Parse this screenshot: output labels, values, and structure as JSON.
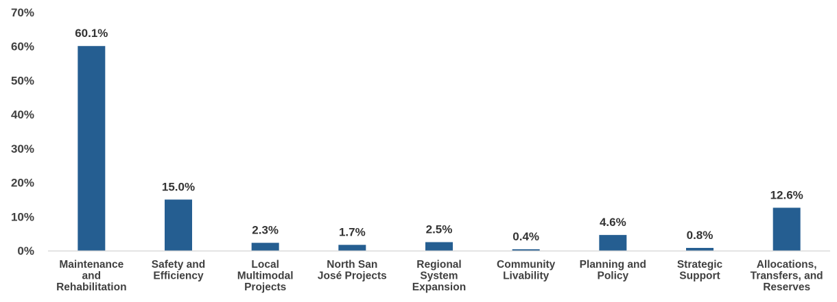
{
  "chart_data": {
    "type": "bar",
    "title": "",
    "xlabel": "",
    "ylabel": "",
    "categories": [
      "Maintenance and Rehabilitation",
      "Safety and Efficiency",
      "Local Multimodal Projects",
      "North San José Projects",
      "Regional System Expansion",
      "Community Livability",
      "Planning and Policy",
      "Strategic Support",
      "Allocations, Transfers, and Reserves"
    ],
    "category_lines": [
      [
        "Maintenance",
        "and",
        "Rehabilitation"
      ],
      [
        "Safety and",
        "Efficiency"
      ],
      [
        "Local",
        "Multimodal",
        "Projects"
      ],
      [
        "North San",
        "José Projects"
      ],
      [
        "Regional",
        "System",
        "Expansion"
      ],
      [
        "Community",
        "Livability"
      ],
      [
        "Planning and",
        "Policy"
      ],
      [
        "Strategic",
        "Support"
      ],
      [
        "Allocations,",
        "Transfers, and",
        "Reserves"
      ]
    ],
    "values": [
      60.1,
      15.0,
      2.3,
      1.7,
      2.5,
      0.4,
      4.6,
      0.8,
      12.6
    ],
    "data_labels": [
      "60.1%",
      "15.0%",
      "2.3%",
      "1.7%",
      "2.5%",
      "0.4%",
      "4.6%",
      "0.8%",
      "12.6%"
    ],
    "ylim": [
      0,
      70
    ],
    "yticks": [
      0,
      10,
      20,
      30,
      40,
      50,
      60,
      70
    ],
    "ytick_labels": [
      "0%",
      "10%",
      "20%",
      "30%",
      "40%",
      "50%",
      "60%",
      "70%"
    ],
    "bar_color": "#255E91",
    "axis_color": "#D9D9D9",
    "grid": false,
    "legend": "none"
  }
}
